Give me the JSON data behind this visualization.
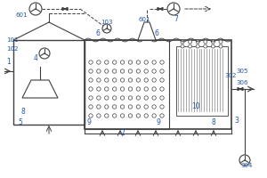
{
  "bg_color": "#ffffff",
  "line_color": "#404040",
  "label_color": "#2255aa",
  "title": "",
  "fig_width": 3.0,
  "fig_height": 2.0,
  "dpi": 100
}
